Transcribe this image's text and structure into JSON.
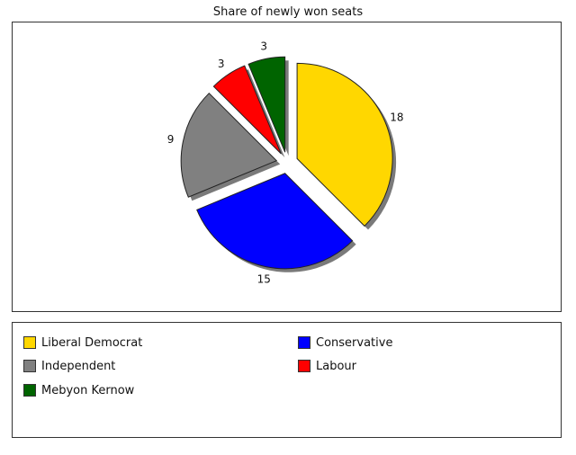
{
  "chart_data": {
    "type": "pie",
    "title": "Share of newly won seats",
    "categories": [
      "Liberal Democrat",
      "Conservative",
      "Independent",
      "Labour",
      "Mebyon Kernow"
    ],
    "values": [
      18,
      15,
      9,
      3,
      3
    ],
    "colors": [
      "#FFD700",
      "#0000FF",
      "#808080",
      "#FF0000",
      "#006400"
    ],
    "exploded": true,
    "legend_position": "bottom"
  }
}
